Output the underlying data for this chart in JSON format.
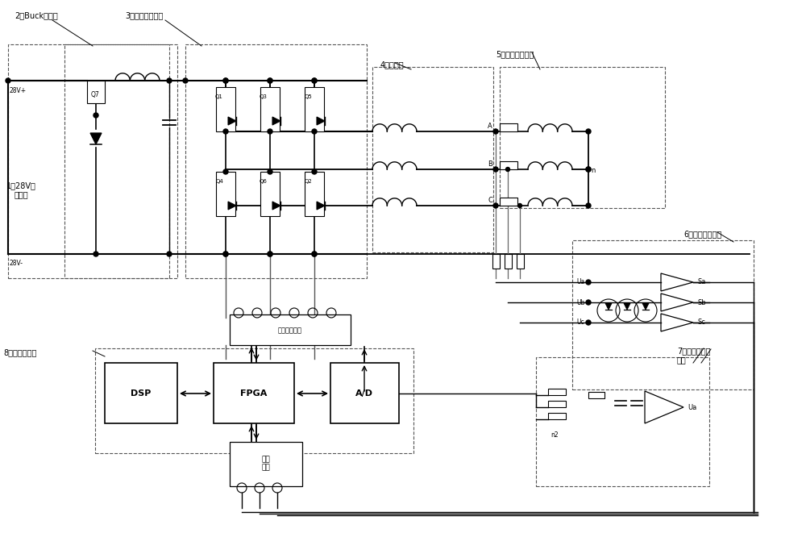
{
  "fig_w": 10.0,
  "fig_h": 6.61,
  "dpi": 100,
  "texts": {
    "label1": "1、28V直\n流电源",
    "label2": "2、Buck变换器",
    "label3": "3、三相桥逆变器",
    "label4": "4、滤波器",
    "label5": "5、无刷直流电机",
    "label6": "6、过零检测电路",
    "label7": "7、相电压检测\n电路",
    "label8": "8、数字控制器",
    "iso": "隔离驱动电路",
    "reshape": "整形\n电路",
    "28vp": "28V+",
    "28vn": "28V-",
    "DSP": "DSP",
    "FPGA": "FPGA",
    "AD": "A/D",
    "Q1": "Q1",
    "Q2": "Q2",
    "Q3": "Q3",
    "Q4": "Q4",
    "Q5": "Q5",
    "Q6": "Q6",
    "Q7": "Q7",
    "A": "A",
    "B": "B",
    "C": "C",
    "n": "n",
    "Ua": "Ua",
    "Ub": "Ub",
    "Uc": "Uc",
    "Ua2": "Ua",
    "n2": "n2",
    "Sa": "Sa",
    "Sb": "Sb",
    "Sc": "Sc"
  }
}
